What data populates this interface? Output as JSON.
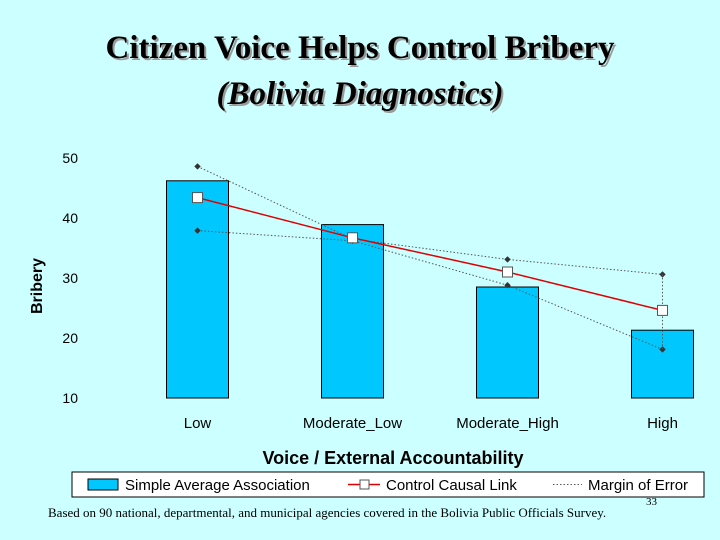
{
  "slide": {
    "title_line1": "Citizen Voice Helps Control Bribery",
    "title_line2": "(Bolivia Diagnostics)",
    "footnote": "Based on 90 national, departmental, and municipal agencies covered in the Bolivia Public Officials Survey.",
    "slide_number": "33"
  },
  "colors": {
    "background": "#ccffff",
    "bar": "#00c8ff",
    "bar_outline": "#000000",
    "control_line": "#e00000",
    "margin_line": "#555555"
  },
  "chart_data": {
    "type": "bar",
    "xlabel": "Voice / External Accountability",
    "ylabel": "Bribery",
    "ylim": [
      10,
      50
    ],
    "yticks": [
      "10",
      "20",
      "30",
      "40",
      "50"
    ],
    "grid": false,
    "legend_position": "bottom",
    "categories": [
      "Low",
      "Moderate_Low",
      "Moderate_High",
      "High"
    ],
    "series": [
      {
        "name": "Simple Average Association",
        "kind": "bar",
        "values": [
          46.2,
          38.9,
          28.5,
          21.3
        ]
      },
      {
        "name": "Control Causal Link",
        "kind": "line",
        "values": [
          43.4,
          36.7,
          31.0,
          24.6
        ]
      },
      {
        "name": "Margin of Error",
        "kind": "dotted-line",
        "upper": [
          48.6,
          36.5,
          33.1,
          30.6
        ],
        "lower": [
          37.9,
          36.2,
          28.8,
          18.1
        ]
      }
    ]
  }
}
